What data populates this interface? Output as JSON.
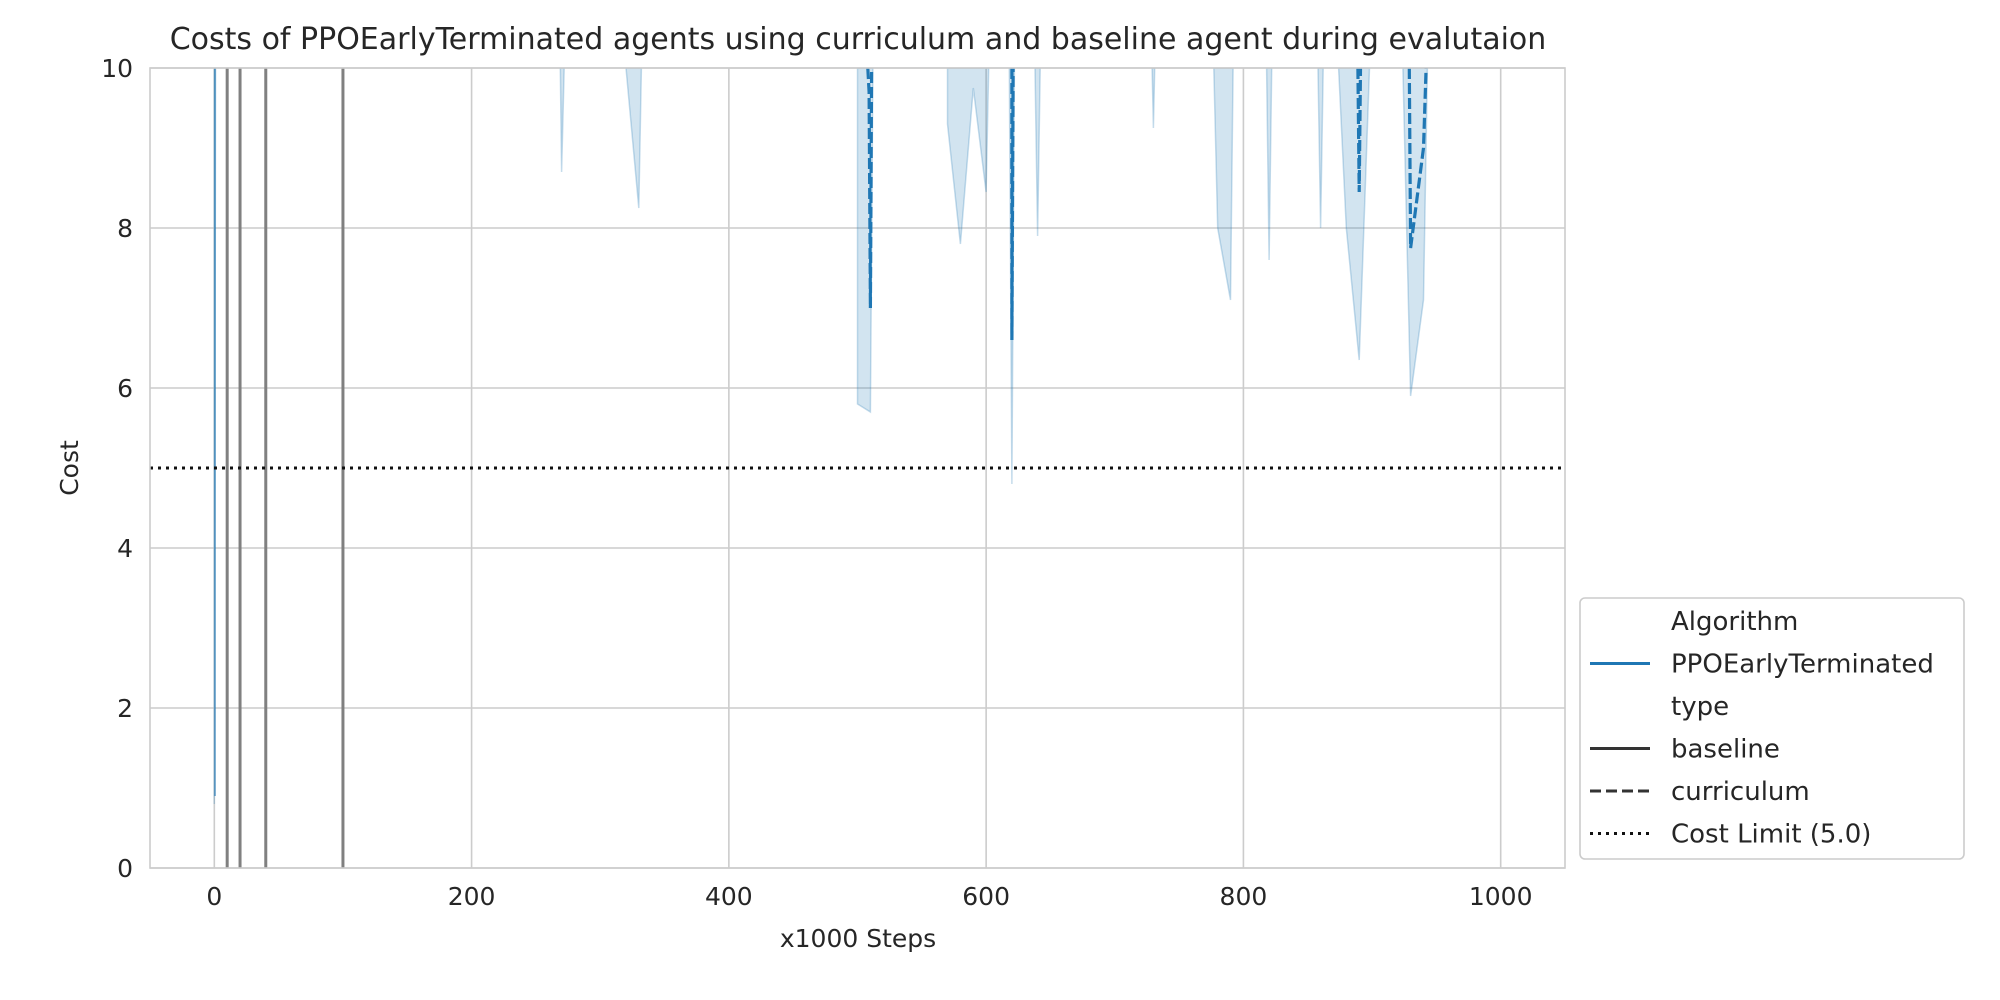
{
  "chart_data": {
    "type": "line",
    "title": "Costs of PPOEarlyTerminated agents using curriculum and baseline agent during evalutaion",
    "xlabel": "x1000 Steps",
    "ylabel": "Cost",
    "xlim": [
      -50,
      1050
    ],
    "ylim": [
      0,
      10
    ],
    "xticks": [
      0,
      200,
      400,
      600,
      800,
      1000
    ],
    "yticks": [
      0,
      2,
      4,
      6,
      8,
      10
    ],
    "grid": true,
    "legend_placement": "lower right, outside plot",
    "colors": {
      "PPOEarlyTerminated": "#1f77b4",
      "band": "#1f77b4",
      "baseline": "#808080",
      "legend_line": "#333333",
      "cost_limit": "#111111"
    },
    "legend": [
      {
        "label": "Algorithm",
        "style": "header"
      },
      {
        "label": "PPOEarlyTerminated",
        "style": "solid-blue"
      },
      {
        "label": "type",
        "style": "header"
      },
      {
        "label": "baseline",
        "style": "solid"
      },
      {
        "label": "curriculum",
        "style": "dashed"
      },
      {
        "label": "Cost Limit (5.0)",
        "style": "dotted"
      }
    ],
    "baseline_lines_x": [
      10,
      20,
      40,
      100
    ],
    "cost_limit": 5.0,
    "confidence_band_segments": [
      [
        [
          0,
          10
        ],
        [
          0,
          0.8
        ],
        [
          1,
          10
        ]
      ],
      [
        [
          269,
          10
        ],
        [
          270,
          8.7
        ],
        [
          272,
          10
        ]
      ],
      [
        [
          320,
          10
        ],
        [
          330,
          8.25
        ],
        [
          332,
          10
        ]
      ],
      [
        [
          500,
          10
        ],
        [
          500,
          5.8
        ],
        [
          510,
          5.7
        ],
        [
          512,
          10
        ]
      ],
      [
        [
          570,
          10
        ],
        [
          570,
          9.3
        ],
        [
          580,
          7.8
        ],
        [
          590,
          9.75
        ],
        [
          600,
          8.45
        ],
        [
          602,
          10
        ]
      ],
      [
        [
          618,
          10
        ],
        [
          620,
          4.8
        ],
        [
          622,
          10
        ]
      ],
      [
        [
          638,
          10
        ],
        [
          640,
          7.9
        ],
        [
          642,
          10
        ]
      ],
      [
        [
          729,
          10
        ],
        [
          730,
          9.25
        ],
        [
          731,
          10
        ]
      ],
      [
        [
          777,
          10
        ],
        [
          780,
          8.0
        ],
        [
          790,
          7.1
        ],
        [
          792,
          10
        ]
      ],
      [
        [
          818,
          10
        ],
        [
          820,
          7.6
        ],
        [
          822,
          10
        ]
      ],
      [
        [
          858,
          10
        ],
        [
          860,
          8.0
        ],
        [
          862,
          10
        ]
      ],
      [
        [
          874,
          10
        ],
        [
          880,
          8.0
        ],
        [
          890,
          6.35
        ],
        [
          898,
          10
        ]
      ],
      [
        [
          924,
          10
        ],
        [
          930,
          5.9
        ],
        [
          940,
          7.1
        ],
        [
          943,
          10
        ]
      ]
    ],
    "curriculum_segments": [
      [
        [
          508,
          10
        ],
        [
          509,
          9.7
        ],
        [
          510,
          7.0
        ],
        [
          511,
          10
        ]
      ],
      [
        [
          620,
          10
        ],
        [
          620,
          6.6
        ],
        [
          621,
          10
        ]
      ],
      [
        [
          889,
          10
        ],
        [
          890,
          8.45
        ],
        [
          891,
          10
        ]
      ],
      [
        [
          929,
          10
        ],
        [
          930,
          7.75
        ],
        [
          940,
          9.0
        ],
        [
          942,
          10
        ]
      ]
    ],
    "xtick_labels": [
      "0",
      "200",
      "400",
      "600",
      "800",
      "1000"
    ],
    "ytick_labels": [
      "0",
      "2",
      "4",
      "6",
      "8",
      "10"
    ]
  }
}
